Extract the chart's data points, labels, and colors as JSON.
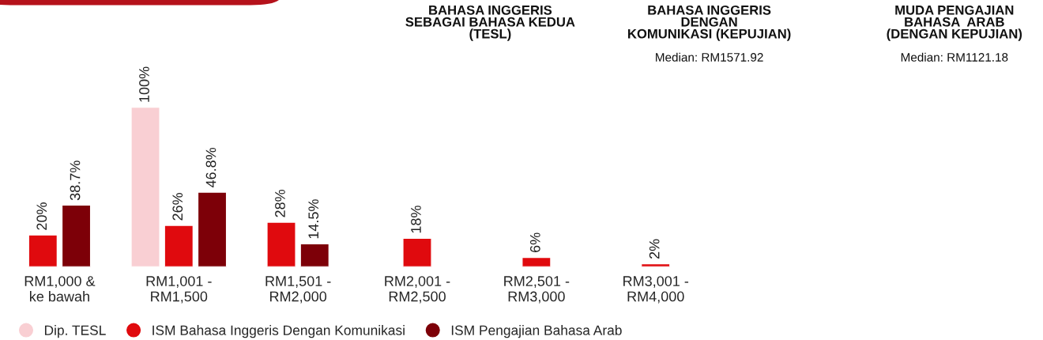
{
  "chart_data": {
    "type": "bar",
    "categories": [
      "RM1,000 &\nke bawah",
      "RM1,001 -\nRM1,500",
      "RM1,501 -\nRM2,000",
      "RM2,001 -\nRM2,500",
      "RM2,501 -\nRM3,000",
      "RM3,001 -\nRM4,000"
    ],
    "series": [
      {
        "name": "Dip. TESL",
        "color": "#f9cfd3",
        "values": [
          null,
          100,
          null,
          null,
          null,
          null
        ],
        "value_labels": [
          null,
          "100%",
          null,
          null,
          null,
          null
        ]
      },
      {
        "name": "ISM Bahasa Inggeris Dengan Komunikasi",
        "color": "#e00a0e",
        "values": [
          20,
          26,
          28,
          18,
          6,
          2
        ],
        "value_labels": [
          "20%",
          "26%",
          "28%",
          "18%",
          "6%",
          "2%"
        ]
      },
      {
        "name": "ISM Pengajian Bahasa Arab",
        "color": "#7d0008",
        "values": [
          38.7,
          46.8,
          14.5,
          null,
          null,
          null
        ],
        "value_labels": [
          "38.7%",
          "46.8%",
          "14.5%",
          null,
          null,
          null
        ]
      }
    ],
    "annotations": [
      "BAHASA INGGERIS\nSEBAGAI BAHASA KEDUA\n(TESL)",
      "BAHASA INGGERIS\nDENGAN\nKOMUNIKASI (KEPUJIAN)\nMedian: RM1571.92",
      "MUDA PENGAJIAN\nBAHASA  ARAB\n(DENGAN KEPUJIAN)\nMedian: RM1121.18"
    ],
    "legend": "bottom",
    "tick_labels": "x",
    "grid": false
  }
}
